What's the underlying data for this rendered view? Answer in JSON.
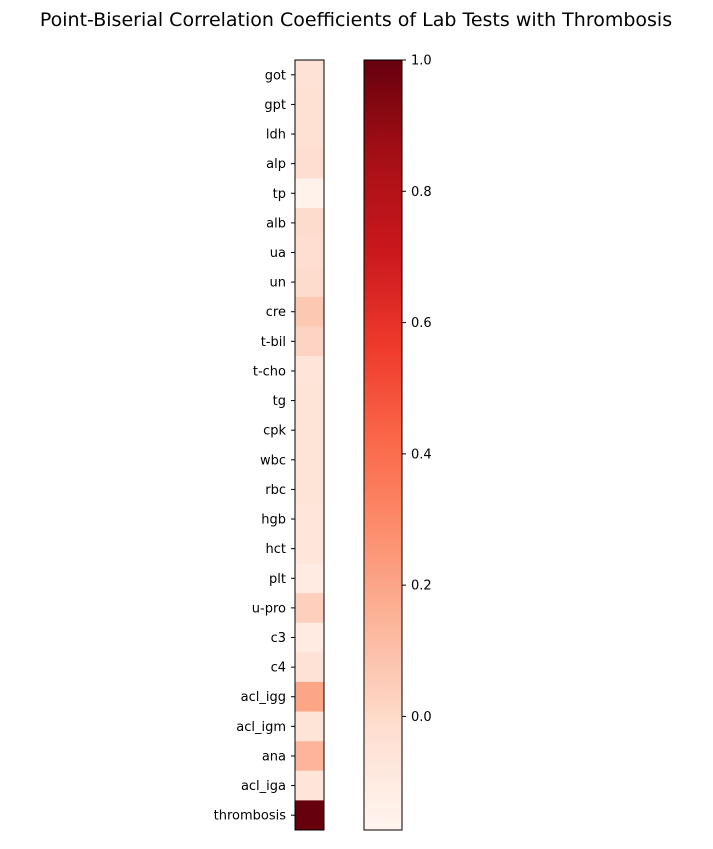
{
  "chart_data": {
    "type": "heatmap",
    "title": "Point-Biserial Correlation Coefficients of Lab Tests with Thrombosis",
    "rows": [
      "got",
      "gpt",
      "ldh",
      "alp",
      "tp",
      "alb",
      "ua",
      "un",
      "cre",
      "t-bil",
      "t-cho",
      "tg",
      "cpk",
      "wbc",
      "rbc",
      "hgb",
      "hct",
      "plt",
      "u-pro",
      "c3",
      "c4",
      "acl_igg",
      "acl_igm",
      "ana",
      "acl_iga",
      "thrombosis"
    ],
    "values": [
      -0.04,
      -0.03,
      -0.03,
      -0.02,
      -0.15,
      -0.01,
      -0.02,
      -0.01,
      0.07,
      0.02,
      -0.06,
      -0.05,
      -0.05,
      -0.05,
      -0.05,
      -0.07,
      -0.07,
      -0.1,
      0.04,
      -0.1,
      -0.04,
      0.2,
      -0.05,
      0.14,
      -0.06,
      1.0
    ],
    "colormap": "Reds",
    "colorbar": {
      "min": -0.173,
      "max": 1.0,
      "ticks": [
        0.0,
        0.2,
        0.4,
        0.6,
        0.8,
        1.0
      ],
      "tick_labels": [
        "0.0",
        "0.2",
        "0.4",
        "0.6",
        "0.8",
        "1.0"
      ]
    }
  }
}
